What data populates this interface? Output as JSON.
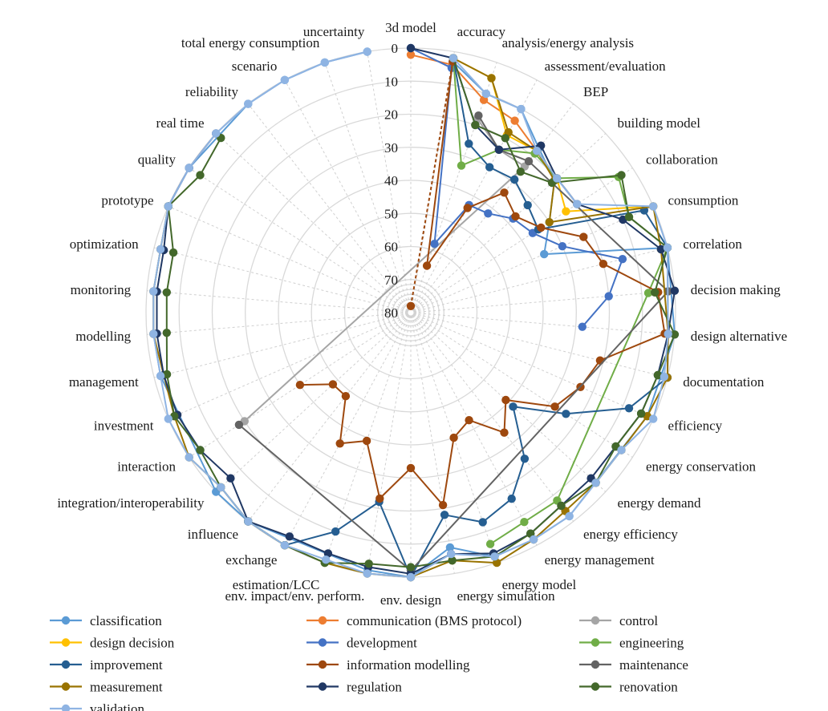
{
  "chart_data": {
    "type": "radar",
    "r_axis": {
      "min": 0,
      "max": 80,
      "reversed": true,
      "ticks": [
        "0",
        "10",
        "20",
        "30",
        "40",
        "50",
        "60",
        "70",
        "80"
      ],
      "tick_values": [
        0,
        10,
        20,
        30,
        40,
        50,
        60,
        70,
        80
      ]
    },
    "categories": [
      "3d model",
      "accuracy",
      "analysis/energy analysis",
      "assessment/evaluation",
      "BEP",
      "building model",
      "collaboration",
      "consumption",
      "correlation",
      "decision making",
      "design alternative",
      "documentation",
      "efficiency",
      "energy conservation",
      "energy demand",
      "energy efficiency",
      "energy management",
      "energy model",
      "energy simulation",
      "env. design",
      "env. impact/env. perform.",
      "estimation/LCC",
      "exchange",
      "influence",
      "integration/interoperability",
      "interaction",
      "investment",
      "management",
      "modelling",
      "monitoring",
      "optimization",
      "prototype",
      "quality",
      "real time",
      "reliability",
      "scenario",
      "total energy consumption",
      "uncertainty"
    ],
    "legend_placement": "bottom",
    "series": [
      {
        "name": "classification",
        "color": "#5b9bd5",
        "values": [
          {
            "c": 1,
            "v": 3
          },
          {
            "c": 2,
            "v": 10
          },
          {
            "c": 3,
            "v": 10
          },
          {
            "c": 4,
            "v": 17
          },
          {
            "c": 5,
            "v": 21
          },
          {
            "c": 6,
            "v": 30
          },
          {
            "c": 7,
            "v": 36
          },
          {
            "c": 8,
            "v": 0
          },
          {
            "c": 10,
            "v": 0
          },
          {
            "c": 11,
            "v": 2
          },
          {
            "c": 12,
            "v": 2
          },
          {
            "c": 15,
            "v": 2
          },
          {
            "c": 16,
            "v": 2
          },
          {
            "c": 17,
            "v": 2
          },
          {
            "c": 18,
            "v": 8
          },
          {
            "c": 19,
            "v": 0
          },
          {
            "c": 20,
            "v": 1
          },
          {
            "c": 23,
            "v": 0
          },
          {
            "c": 24,
            "v": 0
          },
          {
            "c": 27,
            "v": 2
          },
          {
            "c": 28,
            "v": 2
          },
          {
            "c": 29,
            "v": 2
          },
          {
            "c": 30,
            "v": 2
          },
          {
            "c": 31,
            "v": 0
          },
          {
            "c": 32,
            "v": 0
          },
          {
            "c": 34,
            "v": 0
          },
          {
            "c": 35,
            "v": 0
          },
          {
            "c": 36,
            "v": 0
          },
          {
            "c": 37,
            "v": 0
          }
        ]
      },
      {
        "name": "communication (BMS protocol)",
        "color": "#ed7d31",
        "values": [
          {
            "c": 0,
            "v": 2
          },
          {
            "c": 1,
            "v": 4
          },
          {
            "c": 2,
            "v": 12
          },
          {
            "c": 3,
            "v": 14
          },
          {
            "c": 4,
            "v": 18
          },
          {
            "c": 5,
            "v": 20
          }
        ]
      },
      {
        "name": "control",
        "color": "#a5a5a5",
        "values": [
          {
            "c": 2,
            "v": 18
          },
          {
            "c": 3,
            "v": 24
          },
          {
            "c": 4,
            "v": 24
          },
          {
            "c": 25,
            "v": 20
          }
        ]
      },
      {
        "name": "design decision",
        "color": "#ffc000",
        "values": [
          {
            "c": 1,
            "v": 2
          },
          {
            "c": 2,
            "v": 5
          },
          {
            "c": 3,
            "v": 19
          },
          {
            "c": 4,
            "v": 18
          },
          {
            "c": 5,
            "v": 20
          },
          {
            "c": 6,
            "v": 24
          },
          {
            "c": 7,
            "v": 0
          }
        ]
      },
      {
        "name": "development",
        "color": "#4472c4",
        "values": [
          {
            "c": 0,
            "v": 0
          },
          {
            "c": 1,
            "v": 5
          },
          {
            "c": 2,
            "v": 58
          },
          {
            "c": 3,
            "v": 43
          },
          {
            "c": 4,
            "v": 42
          },
          {
            "c": 5,
            "v": 38
          },
          {
            "c": 6,
            "v": 36
          },
          {
            "c": 7,
            "v": 30
          },
          {
            "c": 8,
            "v": 14
          },
          {
            "c": 9,
            "v": 20
          },
          {
            "c": 10,
            "v": 28
          }
        ]
      },
      {
        "name": "engineering",
        "color": "#70ad47",
        "values": [
          {
            "c": 1,
            "v": 2
          },
          {
            "c": 2,
            "v": 33
          },
          {
            "c": 3,
            "v": 24
          },
          {
            "c": 4,
            "v": 19
          },
          {
            "c": 5,
            "v": 20
          },
          {
            "c": 6,
            "v": 5
          },
          {
            "c": 7,
            "v": 8
          },
          {
            "c": 8,
            "v": 0
          },
          {
            "c": 9,
            "v": 8
          },
          {
            "c": 15,
            "v": 8
          },
          {
            "c": 16,
            "v": 8
          },
          {
            "c": 17,
            "v": 6
          }
        ]
      },
      {
        "name": "improvement",
        "color": "#255e91",
        "values": [
          {
            "c": 1,
            "v": 2
          },
          {
            "c": 2,
            "v": 26
          },
          {
            "c": 3,
            "v": 30
          },
          {
            "c": 4,
            "v": 29
          },
          {
            "c": 5,
            "v": 32
          },
          {
            "c": 6,
            "v": 34
          },
          {
            "c": 7,
            "v": 3
          },
          {
            "c": 8,
            "v": 0
          },
          {
            "c": 10,
            "v": 2
          },
          {
            "c": 11,
            "v": 0
          },
          {
            "c": 12,
            "v": 8
          },
          {
            "c": 13,
            "v": 24
          },
          {
            "c": 14,
            "v": 38
          },
          {
            "c": 15,
            "v": 24
          },
          {
            "c": 16,
            "v": 16
          },
          {
            "c": 17,
            "v": 13
          },
          {
            "c": 18,
            "v": 18
          },
          {
            "c": 19,
            "v": 0
          },
          {
            "c": 20,
            "v": 22
          },
          {
            "c": 21,
            "v": 10
          },
          {
            "c": 22,
            "v": 0
          },
          {
            "c": 23,
            "v": 0
          }
        ]
      },
      {
        "name": "information modelling",
        "color": "#9e480e",
        "values": [
          {
            "c": 0,
            "v": 78
          },
          {
            "c": 1,
            "v": 3
          },
          {
            "c": 2,
            "v": 65
          },
          {
            "c": 3,
            "v": 44
          },
          {
            "c": 4,
            "v": 34
          },
          {
            "c": 5,
            "v": 37
          },
          {
            "c": 6,
            "v": 33
          },
          {
            "c": 7,
            "v": 23
          },
          {
            "c": 8,
            "v": 20
          },
          {
            "c": 9,
            "v": 5
          },
          {
            "c": 10,
            "v": 3
          },
          {
            "c": 11,
            "v": 21
          },
          {
            "c": 12,
            "v": 24
          },
          {
            "c": 13,
            "v": 28
          },
          {
            "c": 14,
            "v": 41
          },
          {
            "c": 15,
            "v": 34
          },
          {
            "c": 16,
            "v": 43
          },
          {
            "c": 17,
            "v": 40
          },
          {
            "c": 18,
            "v": 21
          },
          {
            "c": 19,
            "v": 33
          },
          {
            "c": 20,
            "v": 23
          },
          {
            "c": 21,
            "v": 39
          },
          {
            "c": 22,
            "v": 35
          },
          {
            "c": 23,
            "v": 48
          },
          {
            "c": 24,
            "v": 48
          },
          {
            "c": 25,
            "v": 40
          }
        ]
      },
      {
        "name": "maintenance",
        "color": "#636363",
        "values": [
          {
            "c": 2,
            "v": 17
          },
          {
            "c": 3,
            "v": 24
          },
          {
            "c": 4,
            "v": 22
          },
          {
            "c": 9,
            "v": 2
          },
          {
            "c": 19,
            "v": 2
          },
          {
            "c": 25,
            "v": 18
          }
        ]
      },
      {
        "name": "measurement",
        "color": "#997300",
        "values": [
          {
            "c": 1,
            "v": 2
          },
          {
            "c": 2,
            "v": 5
          },
          {
            "c": 3,
            "v": 18
          },
          {
            "c": 4,
            "v": 18
          },
          {
            "c": 5,
            "v": 21
          },
          {
            "c": 6,
            "v": 30
          },
          {
            "c": 7,
            "v": 0
          },
          {
            "c": 8,
            "v": 2
          },
          {
            "c": 10,
            "v": 2
          },
          {
            "c": 11,
            "v": 0
          },
          {
            "c": 12,
            "v": 2
          },
          {
            "c": 13,
            "v": 4
          },
          {
            "c": 14,
            "v": 4
          },
          {
            "c": 15,
            "v": 4
          },
          {
            "c": 16,
            "v": 2
          },
          {
            "c": 17,
            "v": 0
          },
          {
            "c": 18,
            "v": 4
          },
          {
            "c": 19,
            "v": 0
          },
          {
            "c": 20,
            "v": 0
          },
          {
            "c": 21,
            "v": 0
          },
          {
            "c": 22,
            "v": 0
          },
          {
            "c": 23,
            "v": 0
          },
          {
            "c": 24,
            "v": 2
          },
          {
            "c": 25,
            "v": 0
          },
          {
            "c": 26,
            "v": 2
          },
          {
            "c": 27,
            "v": 3
          },
          {
            "c": 28,
            "v": 2
          },
          {
            "c": 29,
            "v": 2
          },
          {
            "c": 30,
            "v": 2
          },
          {
            "c": 31,
            "v": 0
          }
        ]
      },
      {
        "name": "regulation",
        "color": "#203864",
        "values": [
          {
            "c": 0,
            "v": 0
          },
          {
            "c": 1,
            "v": 2
          },
          {
            "c": 2,
            "v": 20
          },
          {
            "c": 3,
            "v": 24
          },
          {
            "c": 4,
            "v": 16
          },
          {
            "c": 5,
            "v": 20
          },
          {
            "c": 6,
            "v": 20
          },
          {
            "c": 7,
            "v": 10
          },
          {
            "c": 8,
            "v": 2
          },
          {
            "c": 9,
            "v": 0
          },
          {
            "c": 10,
            "v": 2
          },
          {
            "c": 11,
            "v": 3
          },
          {
            "c": 12,
            "v": 4
          },
          {
            "c": 13,
            "v": 6
          },
          {
            "c": 14,
            "v": 6
          },
          {
            "c": 15,
            "v": 6
          },
          {
            "c": 16,
            "v": 4
          },
          {
            "c": 17,
            "v": 3
          },
          {
            "c": 18,
            "v": 6
          },
          {
            "c": 19,
            "v": 1
          },
          {
            "c": 20,
            "v": 2
          },
          {
            "c": 21,
            "v": 3
          },
          {
            "c": 22,
            "v": 3
          },
          {
            "c": 23,
            "v": 0
          },
          {
            "c": 24,
            "v": 6
          },
          {
            "c": 25,
            "v": 4
          },
          {
            "c": 26,
            "v": 3
          },
          {
            "c": 27,
            "v": 3
          },
          {
            "c": 28,
            "v": 3
          },
          {
            "c": 29,
            "v": 3
          },
          {
            "c": 30,
            "v": 3
          },
          {
            "c": 31,
            "v": 0
          },
          {
            "c": 32,
            "v": 0
          },
          {
            "c": 33,
            "v": 0
          }
        ]
      },
      {
        "name": "renovation",
        "color": "#43682b",
        "values": [
          {
            "c": 1,
            "v": 2
          },
          {
            "c": 2,
            "v": 20
          },
          {
            "c": 3,
            "v": 20
          },
          {
            "c": 4,
            "v": 26
          },
          {
            "c": 5,
            "v": 22
          },
          {
            "c": 6,
            "v": 4
          },
          {
            "c": 7,
            "v": 8
          },
          {
            "c": 8,
            "v": 0
          },
          {
            "c": 9,
            "v": 6
          },
          {
            "c": 10,
            "v": 0
          },
          {
            "c": 11,
            "v": 3
          },
          {
            "c": 12,
            "v": 4
          },
          {
            "c": 13,
            "v": 6
          },
          {
            "c": 14,
            "v": 4
          },
          {
            "c": 15,
            "v": 6
          },
          {
            "c": 16,
            "v": 4
          },
          {
            "c": 17,
            "v": 2
          },
          {
            "c": 18,
            "v": 4
          },
          {
            "c": 19,
            "v": 3
          },
          {
            "c": 20,
            "v": 3
          },
          {
            "c": 21,
            "v": 0
          },
          {
            "c": 22,
            "v": 0
          },
          {
            "c": 23,
            "v": 0
          },
          {
            "c": 24,
            "v": 2
          },
          {
            "c": 25,
            "v": 4
          },
          {
            "c": 26,
            "v": 2
          },
          {
            "c": 27,
            "v": 4
          },
          {
            "c": 28,
            "v": 6
          },
          {
            "c": 29,
            "v": 6
          },
          {
            "c": 30,
            "v": 6
          },
          {
            "c": 31,
            "v": 0
          },
          {
            "c": 32,
            "v": 4
          },
          {
            "c": 33,
            "v": 2
          }
        ]
      },
      {
        "name": "validation",
        "color": "#8fb4e3",
        "values": [
          {
            "c": 1,
            "v": 2
          },
          {
            "c": 2,
            "v": 10
          },
          {
            "c": 3,
            "v": 10
          },
          {
            "c": 4,
            "v": 18
          },
          {
            "c": 5,
            "v": 20
          },
          {
            "c": 6,
            "v": 20
          },
          {
            "c": 7,
            "v": 0
          },
          {
            "c": 8,
            "v": 0
          },
          {
            "c": 10,
            "v": 2
          },
          {
            "c": 11,
            "v": 1
          },
          {
            "c": 12,
            "v": 0
          },
          {
            "c": 13,
            "v": 4
          },
          {
            "c": 14,
            "v": 4
          },
          {
            "c": 15,
            "v": 2
          },
          {
            "c": 16,
            "v": 2
          },
          {
            "c": 17,
            "v": 2
          },
          {
            "c": 18,
            "v": 6
          },
          {
            "c": 19,
            "v": 0
          },
          {
            "c": 20,
            "v": 0
          },
          {
            "c": 21,
            "v": 1
          },
          {
            "c": 22,
            "v": 0
          },
          {
            "c": 23,
            "v": 0
          },
          {
            "c": 24,
            "v": 2
          },
          {
            "c": 25,
            "v": 0
          },
          {
            "c": 26,
            "v": 0
          },
          {
            "c": 27,
            "v": 2
          },
          {
            "c": 28,
            "v": 2
          },
          {
            "c": 29,
            "v": 2
          },
          {
            "c": 30,
            "v": 2
          },
          {
            "c": 31,
            "v": 0
          },
          {
            "c": 32,
            "v": 0
          },
          {
            "c": 33,
            "v": 0
          },
          {
            "c": 34,
            "v": 0
          },
          {
            "c": 35,
            "v": 0
          },
          {
            "c": 36,
            "v": 0
          },
          {
            "c": 37,
            "v": 0
          }
        ]
      }
    ],
    "special": {
      "dashed_segment": {
        "series": "information modelling",
        "from_category": "3d model",
        "to_category": "accuracy"
      }
    }
  }
}
